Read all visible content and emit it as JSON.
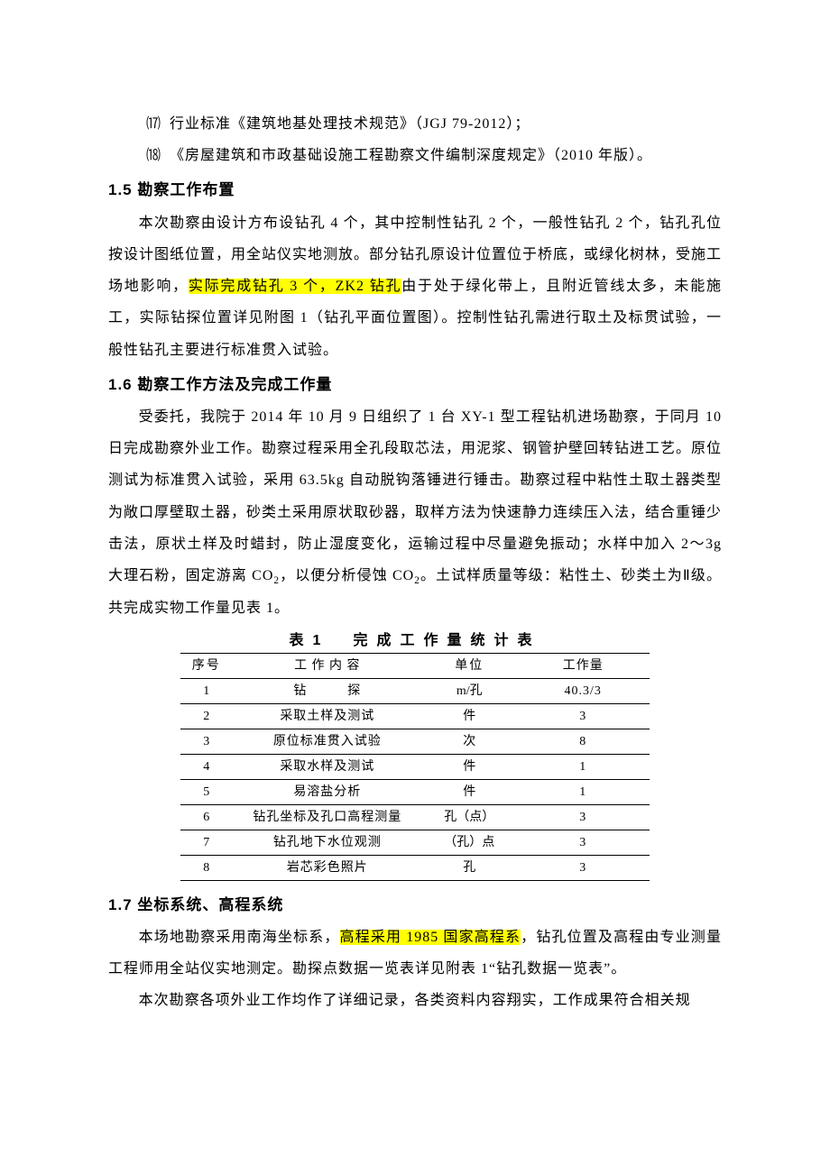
{
  "list_items": [
    {
      "marker": "⒄",
      "text": "行业标准《建筑地基处理技术规范》（JGJ 79-2012）；"
    },
    {
      "marker": "⒅",
      "text": "《房屋建筑和市政基础设施工程勘察文件编制深度规定》（2010 年版）。"
    }
  ],
  "sections": {
    "s15": {
      "heading": "1.5 勘察工作布置",
      "para_parts": {
        "p1a": "本次勘察由设计方布设钻孔 4 个，其中控制性钻孔 2 个，一般性钻孔 2 个，钻孔孔位按设计图纸位置，用全站仪实地测放。部分钻孔原设计位置位于桥底，或绿化树林，受施工场地影响，",
        "p1h": "实际完成钻孔 3 个，ZK2 钻孔",
        "p1b": "由于处于绿化带上，且附近管线太多，未能施工，实际钻探位置详见附图 1（钻孔平面位置图）。控制性钻孔需进行取土及标贯试验，一般性钻孔主要进行标准贯入试验。"
      }
    },
    "s16": {
      "heading": "1.6 勘察工作方法及完成工作量",
      "para_parts": {
        "p1a": "受委托，我院于 2014 年 10 月 9 日组织了 1 台 XY-1 型工程钻机进场勘察，于同月 10 日完成勘察外业工作。勘察过程采用全孔段取芯法，用泥浆、钢管护壁回转钻进工艺。原位测试为标准贯入试验，采用 63.5kg 自动脱钩落锤进行锤击。勘察过程中粘性土取土器类型为敞口厚壁取土器，砂类土采用原状取砂器，取样方法为快速静力连续压入法，结合重锤少击法，原状土样及时蜡封，防止湿度变化，运输过程中尽量避免振动；水样中加入 2～3g 大理石粉，固定游离 CO",
        "p1b": "，以便分析侵蚀 CO",
        "p1c": "。土试样质量等级：粘性土、砂类土为Ⅱ级。共完成实物工作量见表 1。"
      }
    },
    "s17": {
      "heading": "1.7 坐标系统、高程系统",
      "para_parts": {
        "p1a": "本场地勘察采用南海坐标系，",
        "p1h": "高程采用 1985 国家高程系",
        "p1b": "，钻孔位置及高程由专业测量工程师用全站仪实地测定。勘探点数据一览表详见附表 1“钻孔数据一览表”。",
        "p2": "本次勘察各项外业工作均作了详细记录，各类资料内容翔实，工作成果符合相关规"
      }
    }
  },
  "table": {
    "caption": "表1　完成工作量统计表",
    "columns": [
      "序号",
      "工 作 内 容",
      "单位",
      "工作量"
    ],
    "rows": [
      [
        "1",
        "钻　　　探",
        "m/孔",
        "40.3/3"
      ],
      [
        "2",
        "采取土样及测试",
        "件",
        "3"
      ],
      [
        "3",
        "原位标准贯入试验",
        "次",
        "8"
      ],
      [
        "4",
        "采取水样及测试",
        "件",
        "1"
      ],
      [
        "5",
        "易溶盐分析",
        "件",
        "1"
      ],
      [
        "6",
        "钻孔坐标及孔口高程测量",
        "孔（点）",
        "3"
      ],
      [
        "7",
        "钻孔地下水位观测",
        "（孔）点",
        "3"
      ],
      [
        "8",
        "岩芯彩色照片",
        "孔",
        "3"
      ]
    ]
  },
  "sub2": "2"
}
